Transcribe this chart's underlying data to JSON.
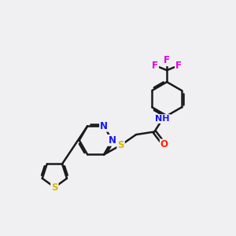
{
  "bg_color": "#f0f0f2",
  "bond_color": "#1a1a1a",
  "bond_width": 1.8,
  "dbo": 0.07,
  "colors": {
    "N": "#1414ff",
    "O": "#ff2000",
    "S": "#d4b800",
    "F": "#e000e0",
    "H": "#007070"
  },
  "fs": 8.5,
  "fs_small": 7.5
}
